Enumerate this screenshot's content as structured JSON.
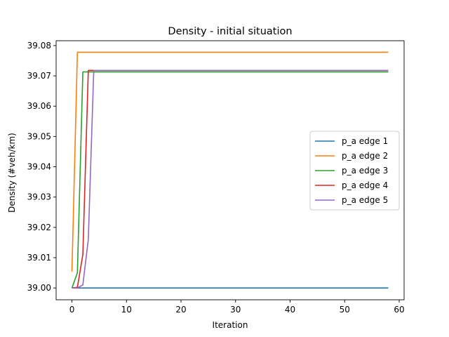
{
  "chart_data": {
    "type": "line",
    "title": "Density - initial situation",
    "xlabel": "Iteration",
    "ylabel": "Density (#veh/km)",
    "xlim": [
      -2.9,
      60.9
    ],
    "ylim": [
      38.9961,
      39.0816
    ],
    "xticks": [
      0,
      10,
      20,
      30,
      40,
      50,
      60
    ],
    "yticks": [
      39.0,
      39.01,
      39.02,
      39.03,
      39.04,
      39.05,
      39.06,
      39.07,
      39.08
    ],
    "ytick_labels": [
      "39.00",
      "39.01",
      "39.02",
      "39.03",
      "39.04",
      "39.05",
      "39.06",
      "39.07",
      "39.08"
    ],
    "grid": false,
    "legend_position": "center-right",
    "series": [
      {
        "name": "p_a edge 1",
        "color": "#1f77b4",
        "points": [
          [
            0,
            39.0
          ],
          [
            58,
            39.0
          ]
        ]
      },
      {
        "name": "p_a edge 2",
        "color": "#ff7f0e",
        "points": [
          [
            0,
            39.0054
          ],
          [
            1,
            39.0778
          ],
          [
            58,
            39.0778
          ]
        ]
      },
      {
        "name": "p_a edge 3",
        "color": "#2ca02c",
        "points": [
          [
            0,
            39.0
          ],
          [
            1,
            39.005
          ],
          [
            2,
            39.0713
          ],
          [
            58,
            39.0713
          ]
        ]
      },
      {
        "name": "p_a edge 4",
        "color": "#d62728",
        "points": [
          [
            0,
            39.0
          ],
          [
            1,
            39.0002
          ],
          [
            2,
            39.011
          ],
          [
            3,
            39.0718
          ],
          [
            58,
            39.0718
          ]
        ]
      },
      {
        "name": "p_a edge 5",
        "color": "#9467bd",
        "points": [
          [
            0,
            39.0
          ],
          [
            1,
            39.0
          ],
          [
            2,
            39.001
          ],
          [
            3,
            39.016
          ],
          [
            4,
            39.0718
          ],
          [
            58,
            39.0718
          ]
        ]
      }
    ]
  }
}
